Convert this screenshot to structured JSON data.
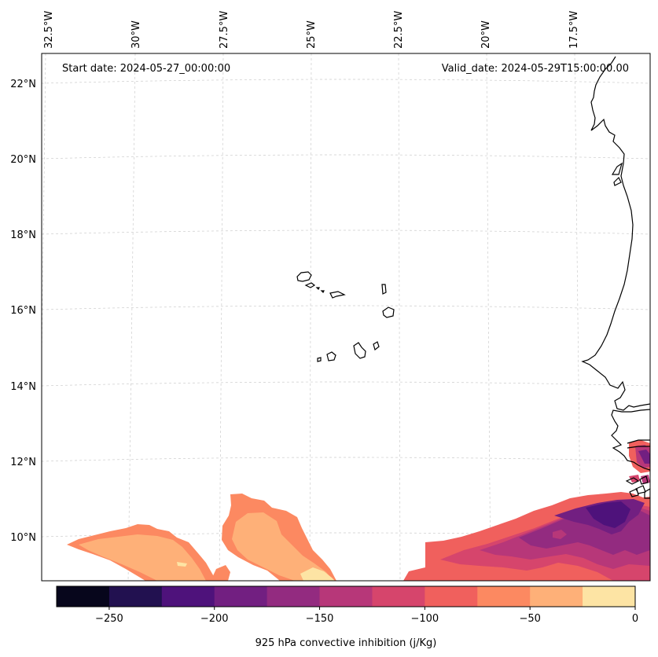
{
  "map": {
    "start_label": "Start date: 2024-05-27_00:00:00",
    "valid_label": "Valid_date: 2024-05-29T15:00:00.00",
    "lon_labels": [
      "32.5°W",
      "30°W",
      "27.5°W",
      "25°W",
      "22.5°W",
      "20°W",
      "17.5°W"
    ],
    "lat_labels": [
      "22°N",
      "20°N",
      "18°N",
      "16°N",
      "14°N",
      "12°N",
      "10°N"
    ]
  },
  "colorbar": {
    "title": "925 hPa convective inhibition (j/Kg)",
    "levels": [
      -275,
      -250,
      -225,
      -200,
      -175,
      -150,
      -125,
      -100,
      -75,
      -50,
      -25,
      0
    ],
    "tick_values": [
      -250,
      -200,
      -150,
      -100,
      -50,
      0
    ],
    "tick_labels": [
      "−250",
      "−200",
      "−150",
      "−100",
      "−50",
      "0"
    ],
    "colors": [
      "#07061c",
      "#221150",
      "#4e127b",
      "#721f81",
      "#932b80",
      "#b73779",
      "#d6456c",
      "#f0605d",
      "#fc8961",
      "#feb078",
      "#fde4a4"
    ]
  }
}
